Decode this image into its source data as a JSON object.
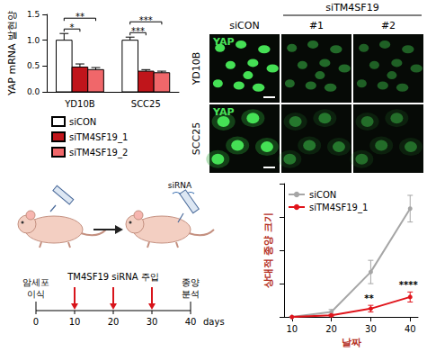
{
  "chart_data": [
    {
      "type": "bar",
      "y_label": "YAP mRNA 발현양",
      "categories": [
        "YD10B",
        "SCC25"
      ],
      "series": [
        {
          "name": "siCON",
          "color": "#ffffff",
          "values": [
            1.0,
            1.0
          ],
          "errors": [
            0.13,
            0.06
          ]
        },
        {
          "name": "siTM4SF19_1",
          "color": "#c0151b",
          "values": [
            0.48,
            0.4
          ],
          "errors": [
            0.06,
            0.03
          ]
        },
        {
          "name": "siTM4SF19_2",
          "color": "#f0676a",
          "values": [
            0.43,
            0.37
          ],
          "errors": [
            0.04,
            0.03
          ]
        }
      ],
      "significance": [
        {
          "category": "YD10B",
          "from": "siCON",
          "to": "siTM4SF19_1",
          "label": "*"
        },
        {
          "category": "YD10B",
          "from": "siCON",
          "to": "siTM4SF19_2",
          "label": "**"
        },
        {
          "category": "SCC25",
          "from": "siCON",
          "to": "siTM4SF19_1",
          "label": "***"
        },
        {
          "category": "SCC25",
          "from": "siCON",
          "to": "siTM4SF19_2",
          "label": "***"
        }
      ],
      "ylim": [
        0,
        1.5
      ],
      "yticks": [
        {
          "value": 0,
          "label": "0.0"
        },
        0.5,
        {
          "value": 1,
          "label": "1.0"
        },
        1.5
      ],
      "grid": false,
      "legend": "bottom"
    },
    {
      "type": "line",
      "x_label": "날짜",
      "y_label": "상대적 종양 크기",
      "x": [
        10,
        20,
        30,
        40
      ],
      "series": [
        {
          "name": "siCON",
          "color": "#a6a6a6",
          "values": [
            0,
            3,
            27,
            65
          ],
          "errors": [
            0,
            1.5,
            7,
            8
          ],
          "marker": "circle"
        },
        {
          "name": "siTM4SF19_1",
          "color": "#e0141b",
          "values": [
            0,
            1,
            5,
            12
          ],
          "errors": [
            0,
            0.5,
            2,
            3
          ],
          "marker": "circle"
        }
      ],
      "significance": [
        {
          "x": 30,
          "series": "siTM4SF19_1",
          "label": "**"
        },
        {
          "x": 40,
          "series": "siTM4SF19_1",
          "label": "****"
        }
      ],
      "xlim": [
        8,
        42
      ],
      "xticks": [
        10,
        20,
        30,
        40
      ],
      "ylim": [
        0,
        80
      ],
      "yticks": [
        0,
        20,
        40,
        60,
        80
      ],
      "tick_labels": "x",
      "grid": false,
      "legend": "top-left"
    }
  ],
  "images": {
    "group_header": "siTM4SF19",
    "columns": [
      "siCON",
      "#1",
      "#2"
    ],
    "rows": [
      "YD10B",
      "SCC25"
    ],
    "stain": "YAP"
  },
  "timeline": {
    "syringe_label": "siRNA",
    "events": [
      {
        "day": 0,
        "lines": [
          "암세포",
          "이식"
        ]
      },
      {
        "day": 40,
        "lines": [
          "종양",
          "분석"
        ]
      }
    ],
    "injection": {
      "label": "TM4SF19 siRNA 주입",
      "days": [
        10,
        20,
        30
      ]
    },
    "ticks": [
      0,
      10,
      20,
      30,
      40
    ],
    "unit": "days"
  }
}
